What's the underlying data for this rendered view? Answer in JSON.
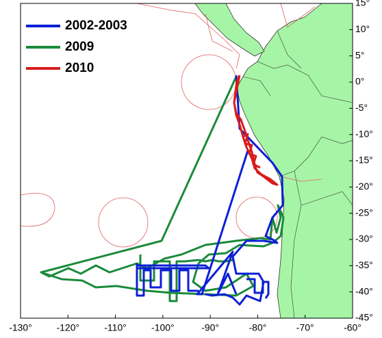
{
  "map": {
    "legend": [
      {
        "name": "2002-2003",
        "color": "#0b1fd6"
      },
      {
        "name": "2009",
        "color": "#1a8a3a"
      },
      {
        "name": "2010",
        "color": "#d81b1b"
      }
    ],
    "xlim": [
      -130,
      -60
    ],
    "ylim": [
      -45,
      15
    ],
    "xticks": [
      {
        "value": -130,
        "label": "-130°"
      },
      {
        "value": -120,
        "label": "-120°"
      },
      {
        "value": -110,
        "label": "-110°"
      },
      {
        "value": -100,
        "label": "-100°"
      },
      {
        "value": -90,
        "label": "-90°"
      },
      {
        "value": -80,
        "label": "-80°"
      },
      {
        "value": -70,
        "label": "-70°"
      },
      {
        "value": -60,
        "label": "-60°"
      }
    ],
    "yticks": [
      {
        "value": 15,
        "label": "15°"
      },
      {
        "value": 10,
        "label": "10°"
      },
      {
        "value": 5,
        "label": "5°"
      },
      {
        "value": 0,
        "label": "0°"
      },
      {
        "value": -5,
        "label": "-5°"
      },
      {
        "value": -10,
        "label": "-10°"
      },
      {
        "value": -15,
        "label": "-15°"
      },
      {
        "value": -20,
        "label": "-20°"
      },
      {
        "value": -25,
        "label": "-25°"
      },
      {
        "value": -30,
        "label": "-30°"
      },
      {
        "value": -35,
        "label": "-35°"
      },
      {
        "value": -40,
        "label": "-40°"
      },
      {
        "value": -45,
        "label": "-45°"
      }
    ]
  }
}
